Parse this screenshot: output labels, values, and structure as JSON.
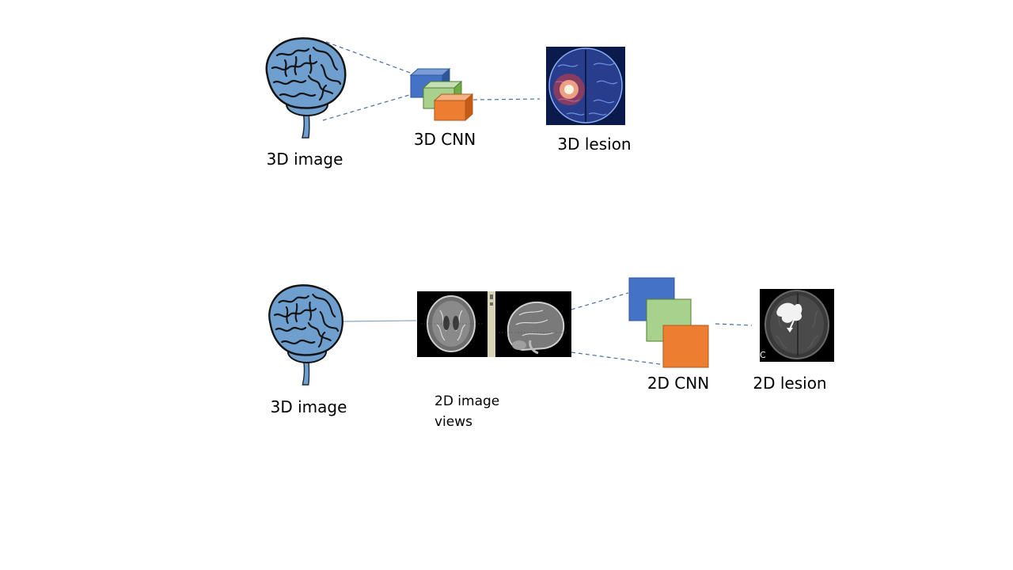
{
  "colors": {
    "brain": "#6f9fcf",
    "brain_dark": "#141414",
    "cnn_blue": "#4472c4",
    "cnn_green": "#a9d18e",
    "cnn_orange": "#ed7d31",
    "connector": "#4a6fa5",
    "scan_bg": "#000000"
  },
  "top_pipeline": {
    "input_label": "3D image",
    "model_label": "3D CNN",
    "output_label": "3D lesion",
    "input_icon": "brain-icon",
    "output_icon": "glowing-brain-lesion-icon"
  },
  "bottom_pipeline": {
    "input_label": "3D image",
    "views_label_line1": "2D image",
    "views_label_line2": "views",
    "model_label": "2D CNN",
    "output_label": "2D lesion",
    "output_corner_letter": "C",
    "input_icon": "brain-icon",
    "views_icon": "mri-slice-views-icon",
    "output_icon": "mri-axial-lesion-icon"
  }
}
